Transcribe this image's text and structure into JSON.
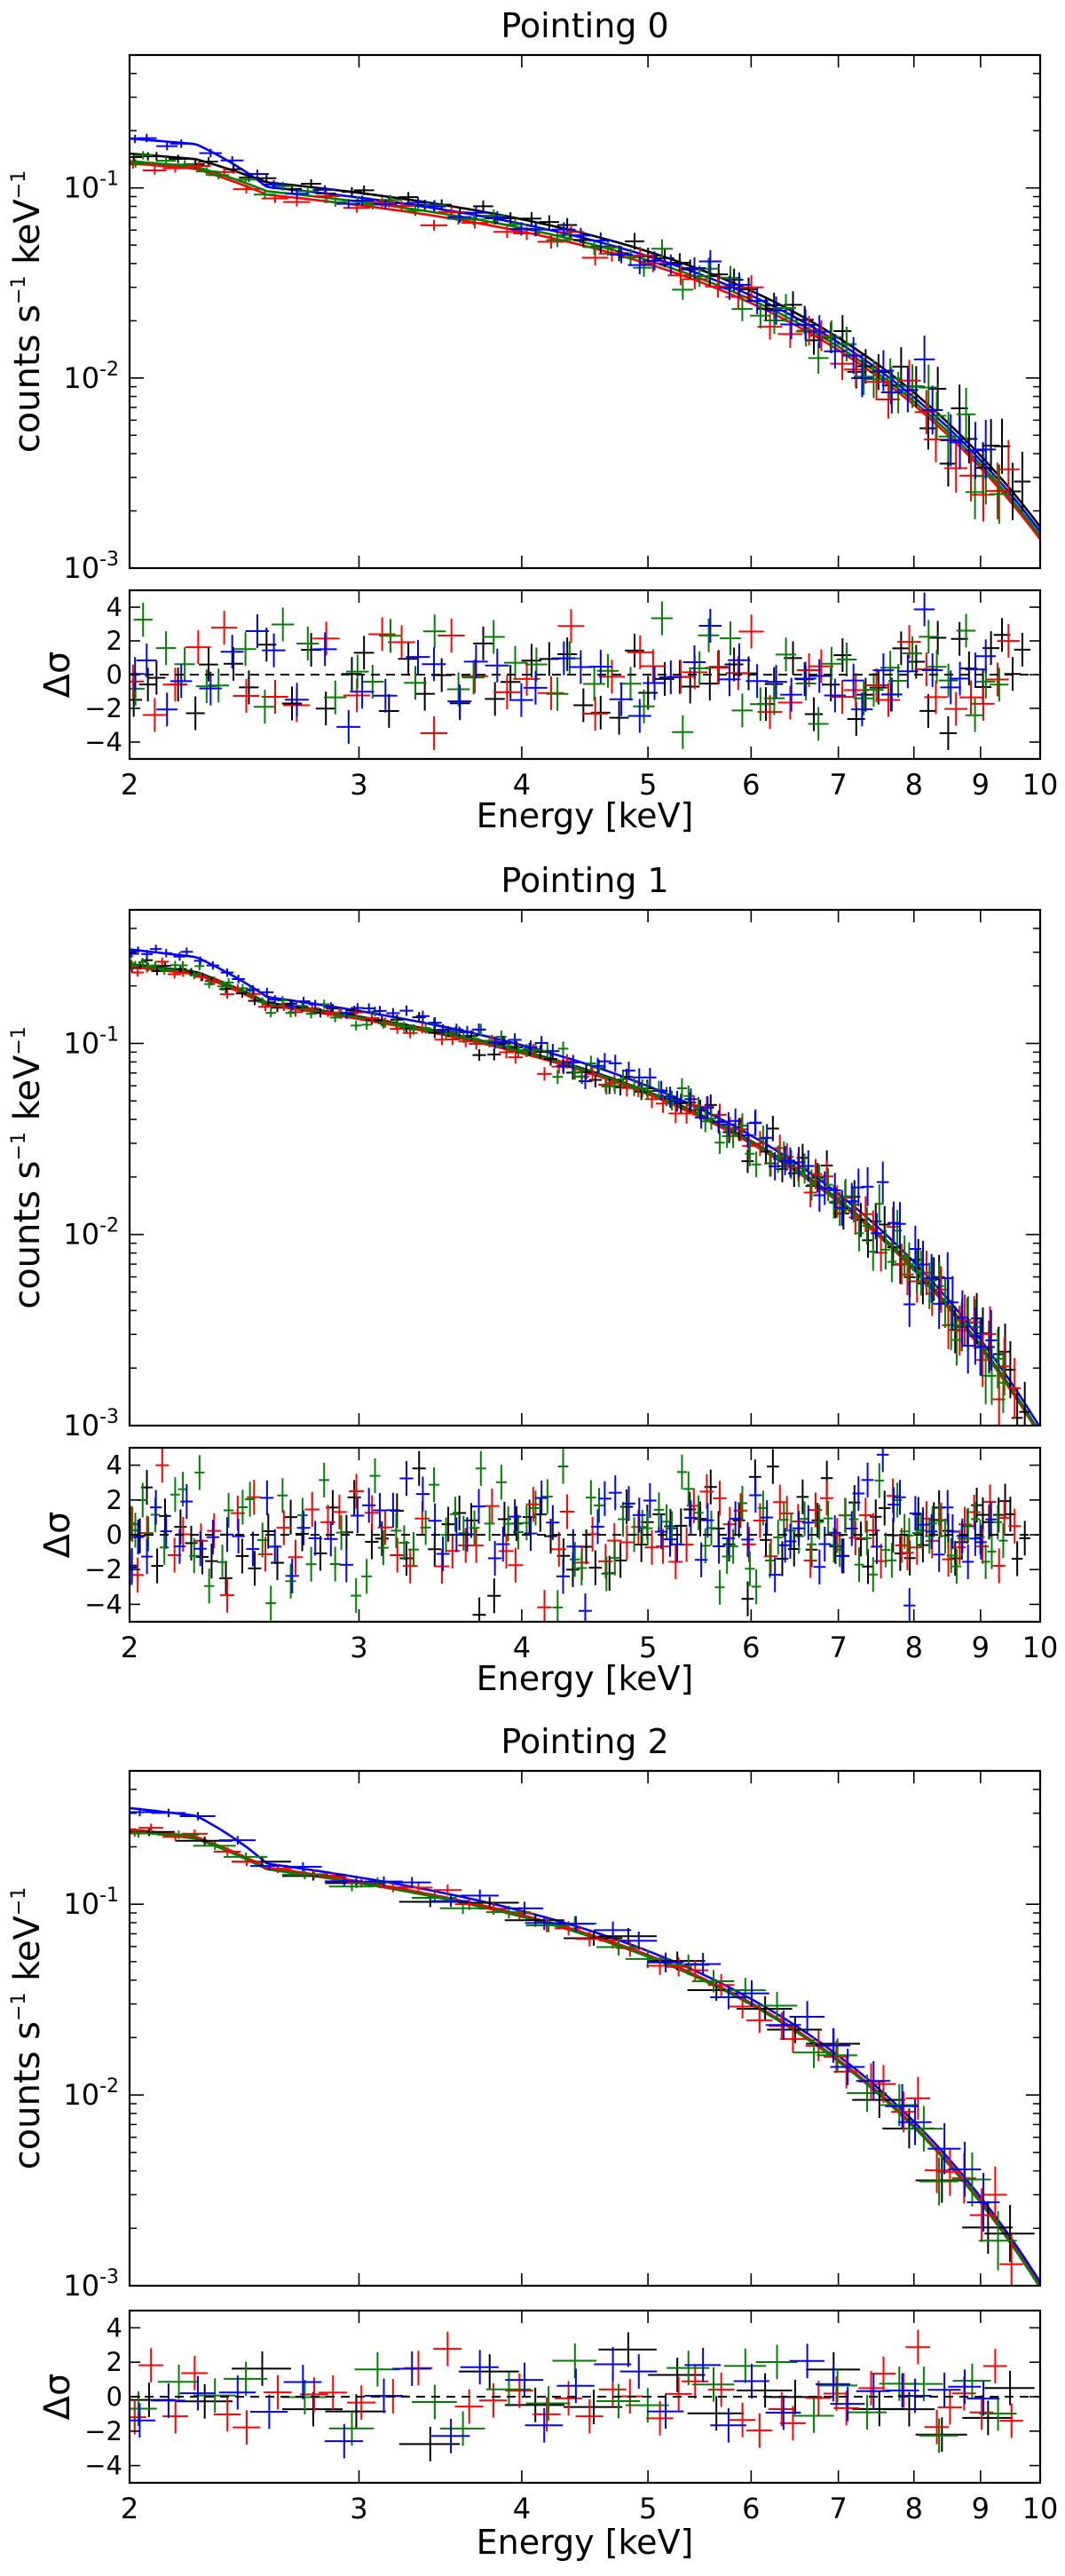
{
  "figure": {
    "description": "Three stacked X-ray spectra with residual panels",
    "colors": {
      "series_0": "#000000",
      "series_1": "#ff0000",
      "series_2": "#008000",
      "series_3": "#0000ff",
      "frame": "#000000",
      "background": "#ffffff"
    }
  },
  "chart_data": [
    {
      "type": "scatter",
      "title": "Pointing 0",
      "xlabel": "Energy [keV]",
      "ylabel_main": "counts s",
      "ylabel_sup1": "−1",
      "ylabel_mid": " keV",
      "ylabel_sup2": "−1",
      "resid_ylabel": "Δσ",
      "xscale": "log",
      "yscale": "log",
      "xlim": [
        2,
        10
      ],
      "ylim": [
        0.001,
        0.5
      ],
      "resid_ylim": [
        -5,
        5
      ],
      "xticks": [
        2,
        3,
        4,
        5,
        6,
        7,
        8,
        9,
        10
      ],
      "xticklabels": [
        "2",
        "3",
        "4",
        "5",
        "6",
        "7",
        "8",
        "9",
        "10"
      ],
      "yticks": [
        0.1,
        0.01,
        0.001
      ],
      "yticklabels": [
        {
          "base": "10",
          "exp": "-1"
        },
        {
          "base": "10",
          "exp": "-2"
        },
        {
          "base": "10",
          "exp": "-3"
        }
      ],
      "resid_yticks": [
        4,
        2,
        0,
        -2,
        -4
      ],
      "resid_yticklabels": [
        "4",
        "2",
        "0",
        "−2",
        "−4"
      ],
      "series": [
        {
          "name": "black",
          "norm": 1.08,
          "edge": 0.22,
          "n": 60,
          "resid_amp": 1.5
        },
        {
          "name": "red",
          "norm": 0.93,
          "edge": 0.26,
          "n": 44,
          "resid_amp": 1.6
        },
        {
          "name": "green",
          "norm": 0.97,
          "edge": 0.24,
          "n": 52,
          "resid_amp": 1.6
        },
        {
          "name": "blue",
          "norm": 1.02,
          "edge": 0.55,
          "n": 48,
          "resid_amp": 1.4
        }
      ],
      "model": {
        "a": 0.115,
        "slope": -0.55,
        "cutoff": 3.2,
        "edge_energy": 2.3
      }
    },
    {
      "type": "scatter",
      "title": "Pointing 1",
      "xlabel": "Energy [keV]",
      "ylabel_main": "counts s",
      "ylabel_sup1": "−1",
      "ylabel_mid": " keV",
      "ylabel_sup2": "−1",
      "resid_ylabel": "Δσ",
      "xscale": "log",
      "yscale": "log",
      "xlim": [
        2,
        10
      ],
      "ylim": [
        0.001,
        0.5
      ],
      "resid_ylim": [
        -5,
        5
      ],
      "xticks": [
        2,
        3,
        4,
        5,
        6,
        7,
        8,
        9,
        10
      ],
      "xticklabels": [
        "2",
        "3",
        "4",
        "5",
        "6",
        "7",
        "8",
        "9",
        "10"
      ],
      "yticks": [
        0.1,
        0.01,
        0.001
      ],
      "yticklabels": [
        {
          "base": "10",
          "exp": "-1"
        },
        {
          "base": "10",
          "exp": "-2"
        },
        {
          "base": "10",
          "exp": "-3"
        }
      ],
      "resid_yticks": [
        4,
        2,
        0,
        -2,
        -4
      ],
      "resid_yticklabels": [
        "4",
        "2",
        "0",
        "−2",
        "−4"
      ],
      "series": [
        {
          "name": "black",
          "norm": 1.0,
          "edge": 0.3,
          "n": 90,
          "resid_amp": 1.5
        },
        {
          "name": "red",
          "norm": 0.97,
          "edge": 0.3,
          "n": 80,
          "resid_amp": 1.5
        },
        {
          "name": "green",
          "norm": 0.99,
          "edge": 0.3,
          "n": 110,
          "resid_amp": 1.7
        },
        {
          "name": "blue",
          "norm": 1.07,
          "edge": 0.45,
          "n": 85,
          "resid_amp": 1.6
        }
      ],
      "model": {
        "a": 0.2,
        "slope": -0.75,
        "cutoff": 2.9,
        "edge_energy": 2.3
      }
    },
    {
      "type": "scatter",
      "title": "Pointing 2",
      "xlabel": "Energy [keV]",
      "ylabel_main": "counts s",
      "ylabel_sup1": "−1",
      "ylabel_mid": " keV",
      "ylabel_sup2": "−1",
      "resid_ylabel": "Δσ",
      "xscale": "log",
      "yscale": "log",
      "xlim": [
        2,
        10
      ],
      "ylim": [
        0.001,
        0.5
      ],
      "resid_ylim": [
        -5,
        5
      ],
      "xticks": [
        2,
        3,
        4,
        5,
        6,
        7,
        8,
        9,
        10
      ],
      "xticklabels": [
        "2",
        "3",
        "4",
        "5",
        "6",
        "7",
        "8",
        "9",
        "10"
      ],
      "yticks": [
        0.1,
        0.01,
        0.001
      ],
      "yticklabels": [
        {
          "base": "10",
          "exp": "-1"
        },
        {
          "base": "10",
          "exp": "-2"
        },
        {
          "base": "10",
          "exp": "-3"
        }
      ],
      "resid_yticks": [
        4,
        2,
        0,
        -2,
        -4
      ],
      "resid_yticklabels": [
        "4",
        "2",
        "0",
        "−2",
        "−4"
      ],
      "series": [
        {
          "name": "black",
          "norm": 1.0,
          "edge": 0.3,
          "n": 20,
          "resid_amp": 1.2
        },
        {
          "name": "red",
          "norm": 1.0,
          "edge": 0.3,
          "n": 42,
          "resid_amp": 1.2
        },
        {
          "name": "green",
          "norm": 0.98,
          "edge": 0.3,
          "n": 26,
          "resid_amp": 1.3
        },
        {
          "name": "blue",
          "norm": 1.05,
          "edge": 0.6,
          "n": 30,
          "resid_amp": 1.3
        }
      ],
      "model": {
        "a": 0.19,
        "slope": -0.75,
        "cutoff": 2.95,
        "edge_energy": 2.3
      }
    }
  ]
}
